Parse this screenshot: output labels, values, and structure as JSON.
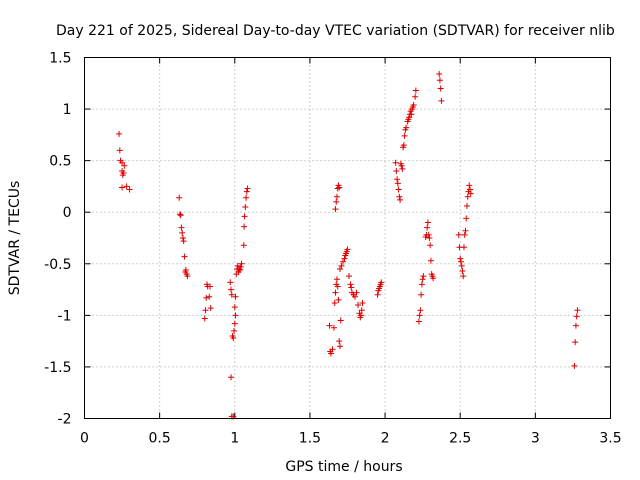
{
  "chart_data": {
    "type": "scatter",
    "title": "Day 221 of 2025, Sidereal Day-to-day VTEC variation (SDTVAR) for receiver nlib",
    "xlabel": "GPS time / hours",
    "ylabel": "SDTVAR / TECUs",
    "xlim": [
      0,
      3.5
    ],
    "ylim": [
      -2,
      1.5
    ],
    "xticks": [
      0,
      0.5,
      1,
      1.5,
      2,
      2.5,
      3,
      3.5
    ],
    "yticks": [
      -2,
      -1.5,
      -1,
      -0.5,
      0,
      0.5,
      1,
      1.5
    ],
    "xtick_labels": [
      "0",
      "0.5",
      "1",
      "1.5",
      "2",
      "2.5",
      "3",
      "3.5"
    ],
    "ytick_labels": [
      "-2",
      "-1.5",
      "-1",
      "-0.5",
      "0",
      "0.5",
      "1",
      "1.5"
    ],
    "grid": true,
    "marker": "+",
    "color": "#e00000",
    "series": [
      {
        "name": "SDTVAR",
        "points": [
          [
            0.23,
            0.76
          ],
          [
            0.235,
            0.6
          ],
          [
            0.24,
            0.5
          ],
          [
            0.25,
            0.48
          ],
          [
            0.25,
            0.4
          ],
          [
            0.255,
            0.36
          ],
          [
            0.26,
            0.38
          ],
          [
            0.265,
            0.45
          ],
          [
            0.25,
            0.24
          ],
          [
            0.28,
            0.25
          ],
          [
            0.3,
            0.22
          ],
          [
            0.63,
            0.14
          ],
          [
            0.635,
            -0.02
          ],
          [
            0.64,
            -0.03
          ],
          [
            0.645,
            -0.15
          ],
          [
            0.65,
            -0.2
          ],
          [
            0.655,
            -0.25
          ],
          [
            0.66,
            -0.28
          ],
          [
            0.665,
            -0.43
          ],
          [
            0.67,
            -0.58
          ],
          [
            0.675,
            -0.56
          ],
          [
            0.68,
            -0.6
          ],
          [
            0.685,
            -0.62
          ],
          [
            0.8,
            -1.03
          ],
          [
            0.805,
            -0.95
          ],
          [
            0.81,
            -0.83
          ],
          [
            0.815,
            -0.7
          ],
          [
            0.82,
            -0.72
          ],
          [
            0.83,
            -0.82
          ],
          [
            0.835,
            -0.72
          ],
          [
            0.84,
            -0.93
          ],
          [
            0.97,
            -0.68
          ],
          [
            0.975,
            -0.75
          ],
          [
            0.98,
            -0.8
          ],
          [
            0.985,
            -1.2
          ],
          [
            0.99,
            -1.22
          ],
          [
            0.995,
            -1.15
          ],
          [
            1.0,
            -1.08
          ],
          [
            1.005,
            -1.0
          ],
          [
            0.975,
            -1.6
          ],
          [
            0.98,
            -1.98
          ],
          [
            0.99,
            -1.98
          ],
          [
            1.0,
            -0.92
          ],
          [
            1.005,
            -0.82
          ],
          [
            1.01,
            -0.6
          ],
          [
            1.015,
            -0.55
          ],
          [
            1.02,
            -0.52
          ],
          [
            1.025,
            -0.58
          ],
          [
            1.03,
            -0.55
          ],
          [
            1.035,
            -0.56
          ],
          [
            1.04,
            -0.53
          ],
          [
            1.045,
            -0.5
          ],
          [
            1.06,
            -0.32
          ],
          [
            1.062,
            -0.14
          ],
          [
            1.065,
            -0.04
          ],
          [
            1.07,
            0.05
          ],
          [
            1.075,
            0.14
          ],
          [
            1.08,
            0.2
          ],
          [
            1.085,
            0.23
          ],
          [
            1.63,
            -1.1
          ],
          [
            1.635,
            -1.35
          ],
          [
            1.64,
            -1.37
          ],
          [
            1.65,
            -1.33
          ],
          [
            1.66,
            -1.12
          ],
          [
            1.665,
            -0.88
          ],
          [
            1.67,
            -0.78
          ],
          [
            1.675,
            -0.7
          ],
          [
            1.68,
            -0.65
          ],
          [
            1.685,
            -0.72
          ],
          [
            1.69,
            -0.85
          ],
          [
            1.695,
            -1.25
          ],
          [
            1.7,
            -1.3
          ],
          [
            1.705,
            -1.05
          ],
          [
            1.67,
            0.03
          ],
          [
            1.675,
            0.1
          ],
          [
            1.68,
            0.15
          ],
          [
            1.685,
            0.23
          ],
          [
            1.69,
            0.26
          ],
          [
            1.695,
            0.24
          ],
          [
            1.7,
            -0.55
          ],
          [
            1.71,
            -0.52
          ],
          [
            1.72,
            -0.48
          ],
          [
            1.73,
            -0.45
          ],
          [
            1.735,
            -0.42
          ],
          [
            1.74,
            -0.4
          ],
          [
            1.745,
            -0.38
          ],
          [
            1.75,
            -0.36
          ],
          [
            1.76,
            -0.62
          ],
          [
            1.77,
            -0.7
          ],
          [
            1.775,
            -0.73
          ],
          [
            1.78,
            -0.78
          ],
          [
            1.79,
            -0.8
          ],
          [
            1.8,
            -0.82
          ],
          [
            1.81,
            -0.78
          ],
          [
            1.82,
            -0.9
          ],
          [
            1.83,
            -0.98
          ],
          [
            1.835,
            -1.02
          ],
          [
            1.84,
            -1.0
          ],
          [
            1.845,
            -0.95
          ],
          [
            1.85,
            -0.88
          ],
          [
            1.95,
            -0.8
          ],
          [
            1.955,
            -0.76
          ],
          [
            1.96,
            -0.74
          ],
          [
            1.965,
            -0.72
          ],
          [
            1.97,
            -0.7
          ],
          [
            1.975,
            -0.68
          ],
          [
            2.07,
            0.48
          ],
          [
            2.075,
            0.4
          ],
          [
            2.08,
            0.32
          ],
          [
            2.085,
            0.28
          ],
          [
            2.09,
            0.22
          ],
          [
            2.095,
            0.15
          ],
          [
            2.1,
            0.12
          ],
          [
            2.105,
            0.47
          ],
          [
            2.11,
            0.45
          ],
          [
            2.115,
            0.42
          ],
          [
            2.12,
            0.63
          ],
          [
            2.125,
            0.65
          ],
          [
            2.13,
            0.74
          ],
          [
            2.135,
            0.8
          ],
          [
            2.14,
            0.82
          ],
          [
            2.15,
            0.88
          ],
          [
            2.155,
            0.9
          ],
          [
            2.16,
            0.92
          ],
          [
            2.165,
            0.95
          ],
          [
            2.17,
            0.98
          ],
          [
            2.175,
            0.95
          ],
          [
            2.18,
            1.0
          ],
          [
            2.185,
            1.02
          ],
          [
            2.19,
            1.04
          ],
          [
            2.2,
            1.12
          ],
          [
            2.205,
            1.18
          ],
          [
            2.225,
            -1.06
          ],
          [
            2.23,
            -1.0
          ],
          [
            2.235,
            -0.95
          ],
          [
            2.24,
            -0.8
          ],
          [
            2.245,
            -0.7
          ],
          [
            2.25,
            -0.65
          ],
          [
            2.255,
            -0.62
          ],
          [
            2.27,
            -0.24
          ],
          [
            2.275,
            -0.22
          ],
          [
            2.28,
            -0.15
          ],
          [
            2.285,
            -0.1
          ],
          [
            2.29,
            -0.22
          ],
          [
            2.295,
            -0.25
          ],
          [
            2.3,
            -0.32
          ],
          [
            2.305,
            -0.47
          ],
          [
            2.31,
            -0.6
          ],
          [
            2.315,
            -0.62
          ],
          [
            2.32,
            -0.64
          ],
          [
            2.36,
            1.34
          ],
          [
            2.365,
            1.28
          ],
          [
            2.37,
            1.2
          ],
          [
            2.375,
            1.08
          ],
          [
            2.49,
            -0.22
          ],
          [
            2.495,
            -0.34
          ],
          [
            2.5,
            -0.45
          ],
          [
            2.505,
            -0.48
          ],
          [
            2.51,
            -0.52
          ],
          [
            2.515,
            -0.57
          ],
          [
            2.52,
            -0.62
          ],
          [
            2.525,
            -0.34
          ],
          [
            2.53,
            -0.22
          ],
          [
            2.535,
            -0.18
          ],
          [
            2.54,
            -0.06
          ],
          [
            2.545,
            0.06
          ],
          [
            2.55,
            0.15
          ],
          [
            2.555,
            0.2
          ],
          [
            2.56,
            0.26
          ],
          [
            2.565,
            0.22
          ],
          [
            2.57,
            0.18
          ],
          [
            3.26,
            -1.49
          ],
          [
            3.265,
            -1.26
          ],
          [
            3.27,
            -1.1
          ],
          [
            3.275,
            -1.01
          ],
          [
            3.28,
            -0.95
          ]
        ]
      }
    ]
  }
}
